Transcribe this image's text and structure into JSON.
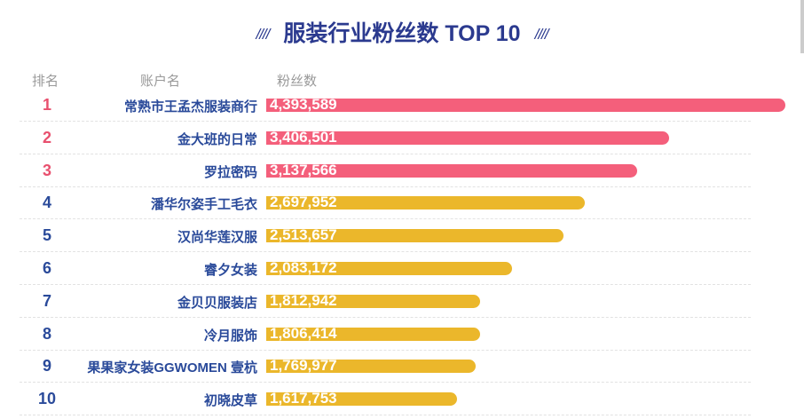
{
  "colors": {
    "top": "#f45f7b",
    "rest": "#ebb72b",
    "rank_top": "#e8506e",
    "rank_rest": "#2a4a9a"
  },
  "chart_data": {
    "type": "bar",
    "title": "服装行业粉丝数 TOP 10",
    "title_decoration": "////",
    "headers": {
      "rank": "排名",
      "name": "账户名",
      "value": "粉丝数"
    },
    "ranks": [
      "1",
      "2",
      "3",
      "4",
      "5",
      "6",
      "7",
      "8",
      "9",
      "10"
    ],
    "categories": [
      "常熟市王孟杰服装商行",
      "金大班的日常",
      "罗拉密码",
      "潘华尔姿手工毛衣",
      "汉尚华莲汉服",
      "睿夕女装",
      "金贝贝服装店",
      "冷月服饰",
      "果果家女装GGWOMEN 壹杭",
      "初晓皮草"
    ],
    "values": [
      4393589,
      3406501,
      3137566,
      2697952,
      2513657,
      2083172,
      1812942,
      1806414,
      1769977,
      1617753
    ],
    "labels": [
      "4,393,589",
      "3,406,501",
      "3,137,566",
      "2,697,952",
      "2,513,657",
      "2,083,172",
      "1,812,942",
      "1,806,414",
      "1,769,977",
      "1,617,753"
    ],
    "xlim": [
      0,
      4393589
    ]
  }
}
